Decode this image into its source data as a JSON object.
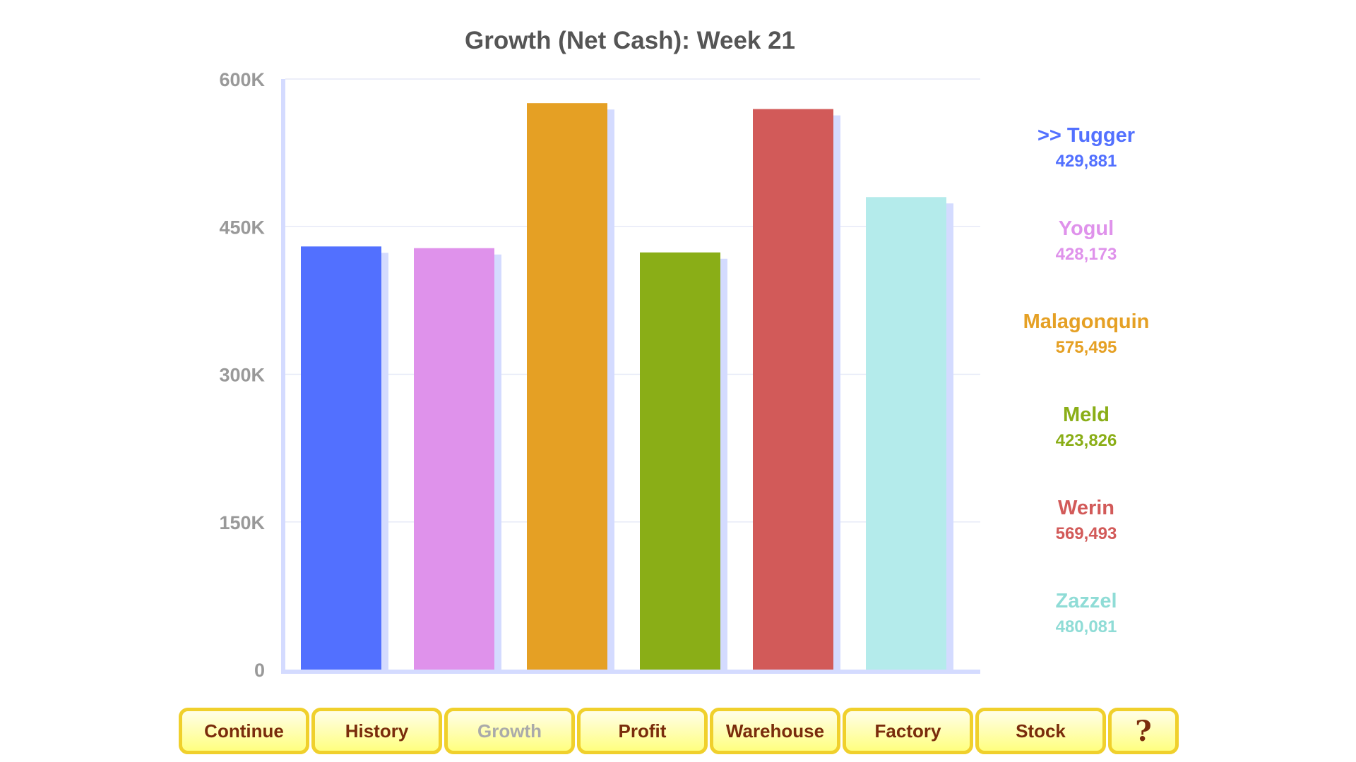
{
  "chart_data": {
    "type": "bar",
    "title": "Growth (Net Cash): Week 21",
    "categories": [
      "Tugger",
      "Yogul",
      "Malagonquin",
      "Meld",
      "Werin",
      "Zazzel"
    ],
    "values": [
      429881,
      428173,
      575495,
      423826,
      569493,
      480081
    ],
    "colors": [
      "#5270ff",
      "#df92eb",
      "#e5a024",
      "#8aae17",
      "#d25a59",
      "#b4ebeb"
    ],
    "shadow_color": "#d4dbff",
    "ylim": [
      0,
      600000
    ],
    "yticks": [
      0,
      150000,
      300000,
      450000,
      600000
    ],
    "ytick_labels": [
      "0",
      "150K",
      "300K",
      "450K",
      "600K"
    ],
    "grid": true,
    "legend_placement": "right",
    "legend": [
      {
        "name": ">> Tugger",
        "value": "429,881",
        "color": "#5270ff"
      },
      {
        "name": "Yogul",
        "value": "428,173",
        "color": "#df92eb"
      },
      {
        "name": "Malagonquin",
        "value": "575,495",
        "color": "#e5a024"
      },
      {
        "name": "Meld",
        "value": "423,826",
        "color": "#8aae17"
      },
      {
        "name": "Werin",
        "value": "569,493",
        "color": "#d25a59"
      },
      {
        "name": "Zazzel",
        "value": "480,081",
        "color": "#8fdcd6"
      }
    ]
  },
  "buttons": [
    {
      "label": "Continue",
      "disabled": false
    },
    {
      "label": "History",
      "disabled": false
    },
    {
      "label": "Growth",
      "disabled": true
    },
    {
      "label": "Profit",
      "disabled": false
    },
    {
      "label": "Warehouse",
      "disabled": false
    },
    {
      "label": "Factory",
      "disabled": false
    },
    {
      "label": "Stock",
      "disabled": false
    },
    {
      "label": "?",
      "disabled": false
    }
  ]
}
